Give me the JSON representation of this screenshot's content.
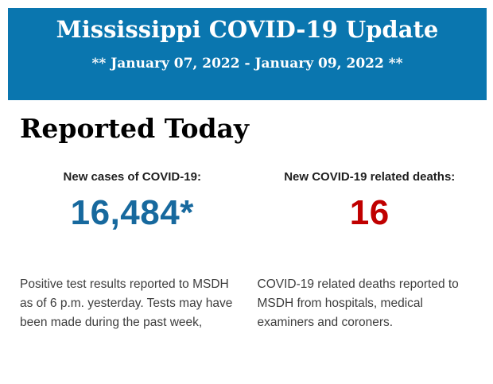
{
  "banner": {
    "title": "Mississippi COVID-19 Update",
    "subtitle": "** January 07, 2022 - January 09, 2022 **",
    "bg_color": "#0a76af",
    "text_color": "#ffffff"
  },
  "section": {
    "heading": "Reported Today"
  },
  "stats": {
    "cases": {
      "label": "New cases of COVID-19:",
      "value": "16,484*",
      "value_color": "#17699e",
      "description": "Positive test results reported to MSDH as of 6 p.m. yesterday. Tests may have been made during the past week,"
    },
    "deaths": {
      "label": "New COVID-19 related deaths:",
      "value": "16",
      "value_color": "#c00000",
      "description": "COVID-19 related deaths reported to MSDH from hospitals, medical examiners and coroners."
    }
  }
}
